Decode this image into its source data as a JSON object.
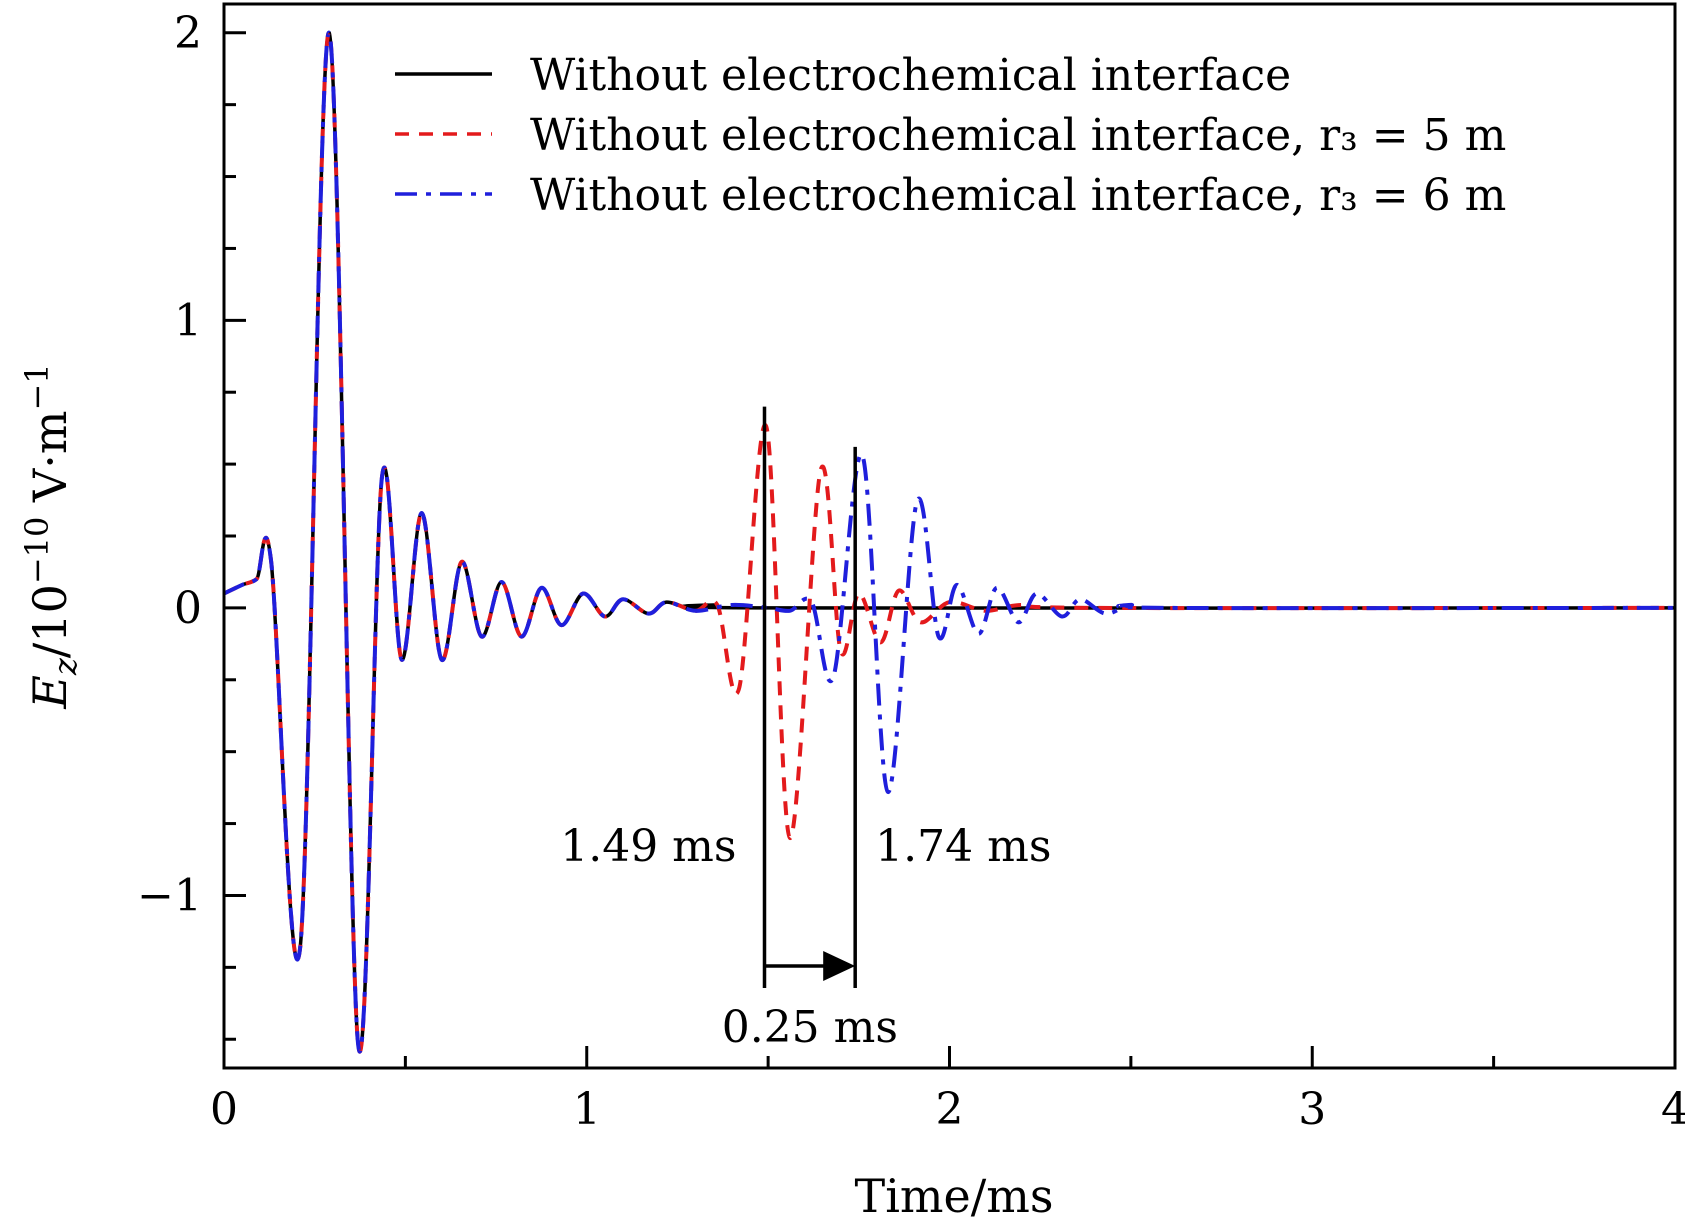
{
  "chart_data": {
    "type": "line",
    "xlabel": "Time/ms",
    "ylabel_main": "E",
    "ylabel_sub": "z",
    "ylabel_rest": "/10",
    "ylabel_exp1": "−10",
    "ylabel_unit": " V·m",
    "ylabel_exp2": "−1",
    "xlim": [
      0,
      4
    ],
    "ylim": [
      -1.6,
      2.1
    ],
    "xticks": [
      0,
      1,
      2,
      3,
      4
    ],
    "xtick_labels": [
      "0",
      "1",
      "2",
      "3",
      "4"
    ],
    "yticks": [
      -1,
      0,
      1,
      2
    ],
    "ytick_labels": [
      "−1",
      "0",
      "1",
      "2"
    ],
    "grid": false,
    "legend_position": "top-right",
    "series": [
      {
        "name": "Without electrochemical interface",
        "color": "#000000",
        "style": "solid",
        "points": [
          [
            0,
            0.05
          ],
          [
            0.05,
            0.08
          ],
          [
            0.09,
            0.1
          ],
          [
            0.13,
            0.16
          ],
          [
            0.21,
            -1.18
          ],
          [
            0.29,
            2.0
          ],
          [
            0.37,
            -1.52
          ],
          [
            0.435,
            0.45
          ],
          [
            0.49,
            -0.18
          ],
          [
            0.545,
            0.33
          ],
          [
            0.6,
            -0.18
          ],
          [
            0.655,
            0.16
          ],
          [
            0.71,
            -0.1
          ],
          [
            0.765,
            0.09
          ],
          [
            0.82,
            -0.1
          ],
          [
            0.875,
            0.07
          ],
          [
            0.93,
            -0.06
          ],
          [
            0.99,
            0.05
          ],
          [
            1.05,
            -0.03
          ],
          [
            1.1,
            0.03
          ],
          [
            1.17,
            -0.02
          ],
          [
            1.22,
            0.02
          ],
          [
            1.3,
            -0.01
          ],
          [
            1.35,
            0.01
          ],
          [
            1.5,
            0.0
          ],
          [
            4.0,
            0.0
          ]
        ]
      },
      {
        "name": "Without electrochemical interface, r₃ = 5 m",
        "color": "#e31a1c",
        "style": "dashed",
        "points": [
          [
            0,
            0.05
          ],
          [
            0.05,
            0.08
          ],
          [
            0.09,
            0.1
          ],
          [
            0.13,
            0.16
          ],
          [
            0.21,
            -1.18
          ],
          [
            0.29,
            2.0
          ],
          [
            0.37,
            -1.52
          ],
          [
            0.435,
            0.45
          ],
          [
            0.49,
            -0.18
          ],
          [
            0.545,
            0.33
          ],
          [
            0.6,
            -0.18
          ],
          [
            0.655,
            0.16
          ],
          [
            0.71,
            -0.1
          ],
          [
            0.765,
            0.09
          ],
          [
            0.82,
            -0.1
          ],
          [
            0.875,
            0.07
          ],
          [
            0.93,
            -0.06
          ],
          [
            0.99,
            0.05
          ],
          [
            1.05,
            -0.03
          ],
          [
            1.1,
            0.03
          ],
          [
            1.17,
            -0.02
          ],
          [
            1.22,
            0.02
          ],
          [
            1.3,
            -0.01
          ],
          [
            1.36,
            0.01
          ],
          [
            1.42,
            -0.28
          ],
          [
            1.495,
            0.63
          ],
          [
            1.56,
            -0.8
          ],
          [
            1.645,
            0.48
          ],
          [
            1.7,
            -0.15
          ],
          [
            1.75,
            0.05
          ],
          [
            1.81,
            -0.12
          ],
          [
            1.86,
            0.06
          ],
          [
            1.92,
            -0.05
          ],
          [
            2.0,
            0.02
          ],
          [
            2.1,
            -0.01
          ],
          [
            2.2,
            0.01
          ],
          [
            2.4,
            0.0
          ],
          [
            4.0,
            0.0
          ]
        ]
      },
      {
        "name": "Without electrochemical interface, r₃ = 6 m",
        "color": "#1f1fdc",
        "style": "dashdot",
        "points": [
          [
            0,
            0.05
          ],
          [
            0.05,
            0.08
          ],
          [
            0.09,
            0.1
          ],
          [
            0.13,
            0.16
          ],
          [
            0.21,
            -1.18
          ],
          [
            0.29,
            2.0
          ],
          [
            0.37,
            -1.52
          ],
          [
            0.435,
            0.45
          ],
          [
            0.49,
            -0.18
          ],
          [
            0.545,
            0.33
          ],
          [
            0.6,
            -0.18
          ],
          [
            0.655,
            0.16
          ],
          [
            0.71,
            -0.1
          ],
          [
            0.765,
            0.09
          ],
          [
            0.82,
            -0.1
          ],
          [
            0.875,
            0.07
          ],
          [
            0.93,
            -0.06
          ],
          [
            0.99,
            0.05
          ],
          [
            1.05,
            -0.03
          ],
          [
            1.1,
            0.03
          ],
          [
            1.17,
            -0.02
          ],
          [
            1.22,
            0.02
          ],
          [
            1.3,
            -0.01
          ],
          [
            1.4,
            0.01
          ],
          [
            1.5,
            0.0
          ],
          [
            1.56,
            -0.01
          ],
          [
            1.62,
            0.02
          ],
          [
            1.68,
            -0.24
          ],
          [
            1.76,
            0.53
          ],
          [
            1.83,
            -0.64
          ],
          [
            1.91,
            0.37
          ],
          [
            1.97,
            -0.1
          ],
          [
            2.02,
            0.08
          ],
          [
            2.08,
            -0.09
          ],
          [
            2.13,
            0.07
          ],
          [
            2.19,
            -0.05
          ],
          [
            2.24,
            0.05
          ],
          [
            2.31,
            -0.03
          ],
          [
            2.36,
            0.03
          ],
          [
            2.43,
            -0.02
          ],
          [
            2.5,
            0.01
          ],
          [
            2.6,
            0.0
          ],
          [
            4.0,
            0.0
          ]
        ]
      }
    ],
    "annotations": {
      "marker1_x": 1.49,
      "marker2_x": 1.74,
      "marker_label1": "1.49 ms",
      "marker_label2": "1.74 ms",
      "interval_label": "0.25 ms"
    }
  }
}
